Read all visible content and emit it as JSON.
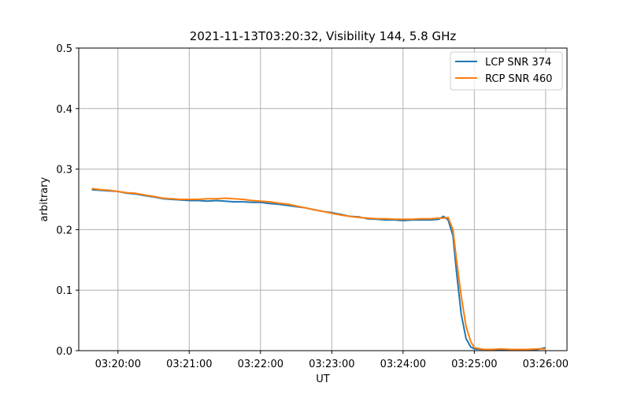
{
  "chart_data": {
    "type": "line",
    "title": "2021-11-13T03:20:32, Visibility 144, 5.8 GHz",
    "xlabel": "UT",
    "ylabel": "arbitrary",
    "xlim": [
      "03:19:27",
      "03:26:18"
    ],
    "ylim": [
      0,
      0.5
    ],
    "xticks": [
      "03:20:00",
      "03:21:00",
      "03:22:00",
      "03:23:00",
      "03:24:00",
      "03:25:00",
      "03:26:00"
    ],
    "yticks": [
      "0.0",
      "0.1",
      "0.2",
      "0.3",
      "0.4",
      "0.5"
    ],
    "grid": true,
    "legend_position": "top-right",
    "x": [
      "03:19:38",
      "03:19:45",
      "03:19:53",
      "03:20:00",
      "03:20:08",
      "03:20:15",
      "03:20:23",
      "03:20:30",
      "03:20:38",
      "03:20:45",
      "03:20:53",
      "03:21:00",
      "03:21:08",
      "03:21:15",
      "03:21:23",
      "03:21:30",
      "03:21:38",
      "03:21:45",
      "03:21:53",
      "03:22:00",
      "03:22:08",
      "03:22:15",
      "03:22:23",
      "03:22:30",
      "03:22:38",
      "03:22:45",
      "03:22:53",
      "03:23:00",
      "03:23:08",
      "03:23:15",
      "03:23:23",
      "03:23:30",
      "03:23:38",
      "03:23:45",
      "03:23:53",
      "03:24:00",
      "03:24:08",
      "03:24:15",
      "03:24:23",
      "03:24:30",
      "03:24:34",
      "03:24:38",
      "03:24:42",
      "03:24:45",
      "03:24:49",
      "03:24:53",
      "03:24:57",
      "03:25:00",
      "03:25:08",
      "03:25:15",
      "03:25:23",
      "03:25:30",
      "03:25:38",
      "03:25:45",
      "03:25:53",
      "03:26:00"
    ],
    "series": [
      {
        "name": "LCP SNR 374",
        "color": "#1f77b4",
        "values": [
          0.266,
          0.265,
          0.264,
          0.263,
          0.26,
          0.259,
          0.256,
          0.254,
          0.251,
          0.25,
          0.249,
          0.248,
          0.248,
          0.247,
          0.248,
          0.247,
          0.246,
          0.246,
          0.245,
          0.245,
          0.243,
          0.242,
          0.24,
          0.238,
          0.236,
          0.233,
          0.23,
          0.228,
          0.225,
          0.222,
          0.221,
          0.218,
          0.217,
          0.216,
          0.216,
          0.215,
          0.216,
          0.216,
          0.216,
          0.217,
          0.222,
          0.216,
          0.19,
          0.13,
          0.06,
          0.02,
          0.006,
          0.003,
          0.002,
          0.002,
          0.002,
          0.002,
          0.002,
          0.002,
          0.002,
          0.005
        ]
      },
      {
        "name": "RCP SNR 460",
        "color": "#ff7f0e",
        "values": [
          0.268,
          0.266,
          0.265,
          0.263,
          0.261,
          0.26,
          0.257,
          0.255,
          0.252,
          0.251,
          0.25,
          0.25,
          0.25,
          0.251,
          0.251,
          0.252,
          0.251,
          0.25,
          0.248,
          0.247,
          0.246,
          0.244,
          0.242,
          0.239,
          0.236,
          0.233,
          0.23,
          0.227,
          0.224,
          0.222,
          0.22,
          0.219,
          0.218,
          0.218,
          0.217,
          0.217,
          0.217,
          0.218,
          0.218,
          0.219,
          0.219,
          0.22,
          0.2,
          0.15,
          0.09,
          0.04,
          0.015,
          0.005,
          0.002,
          0.002,
          0.003,
          0.002,
          0.002,
          0.002,
          0.003,
          0.003
        ]
      }
    ]
  }
}
